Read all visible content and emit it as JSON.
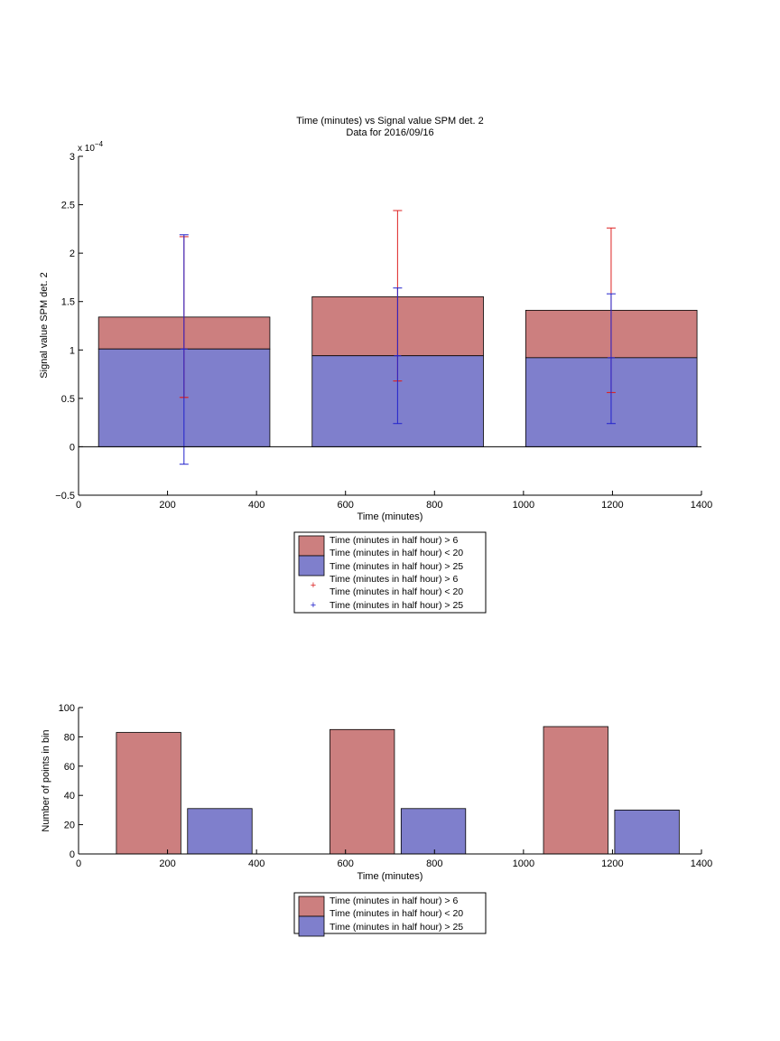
{
  "colors": {
    "red_fill": "#cc7f7f",
    "blue_fill": "#7f7fcc",
    "red_err": "#dd2222",
    "blue_err": "#2222cc",
    "axis": "#000000"
  },
  "chart_data": [
    {
      "type": "bar",
      "stacked": true,
      "title": "Time (minutes) vs Signal value SPM det. 2",
      "subtitle": "Data for 2016/09/16",
      "xlabel": "Time (minutes)",
      "ylabel": "Signal value SPM det. 2",
      "y_multiplier_label": "x 10",
      "y_multiplier_exp": "−4",
      "xlim": [
        0,
        1400
      ],
      "ylim": [
        -0.5,
        3
      ],
      "x_ticks": [
        0,
        200,
        400,
        600,
        800,
        1000,
        1200,
        1400
      ],
      "y_ticks": [
        -0.5,
        0,
        0.5,
        1,
        1.5,
        2,
        2.5,
        3
      ],
      "y_tick_labels": [
        "−0.5",
        "0",
        "0.5",
        "1",
        "1.5",
        "2",
        "2.5",
        "3"
      ],
      "bars": [
        {
          "x_start": 45,
          "x_end": 430,
          "total": 1.34,
          "lower": 1.01
        },
        {
          "x_start": 525,
          "x_end": 910,
          "total": 1.55,
          "lower": 0.94
        },
        {
          "x_start": 1005,
          "x_end": 1390,
          "total": 1.41,
          "lower": 0.92
        }
      ],
      "error_bars": [
        {
          "series": "red",
          "x": 237,
          "center": 0.51,
          "low": 0.51,
          "high": 2.17
        },
        {
          "series": "blue",
          "x": 237,
          "center": 1.01,
          "low": -0.18,
          "high": 2.19
        },
        {
          "series": "red",
          "x": 717,
          "center": 0.68,
          "low": 0.68,
          "high": 2.44
        },
        {
          "series": "blue",
          "x": 717,
          "center": 0.94,
          "low": 0.24,
          "high": 1.64
        },
        {
          "series": "red",
          "x": 1197,
          "center": 0.56,
          "low": 0.56,
          "high": 2.26
        },
        {
          "series": "blue",
          "x": 1197,
          "center": 0.92,
          "low": 0.24,
          "high": 1.58
        }
      ],
      "legend": {
        "placement": "below",
        "entries": [
          "Time (minutes in half hour) > 6",
          "Time (minutes in half hour) < 20",
          "Time (minutes in half hour) > 25",
          "Time (minutes in half hour) > 6",
          "Time (minutes in half hour) < 20",
          "Time (minutes in half hour) > 25"
        ]
      }
    },
    {
      "type": "bar",
      "stacked": false,
      "xlabel": "Time (minutes)",
      "ylabel": "Number of points in bin",
      "xlim": [
        0,
        1400
      ],
      "ylim": [
        0,
        100
      ],
      "x_ticks": [
        0,
        200,
        400,
        600,
        800,
        1000,
        1200,
        1400
      ],
      "y_ticks": [
        0,
        20,
        40,
        60,
        80,
        100
      ],
      "bars": [
        {
          "series": "red",
          "x_start": 85,
          "x_end": 230,
          "value": 83
        },
        {
          "series": "blue",
          "x_start": 245,
          "x_end": 390,
          "value": 31
        },
        {
          "series": "red",
          "x_start": 565,
          "x_end": 710,
          "value": 85
        },
        {
          "series": "blue",
          "x_start": 725,
          "x_end": 870,
          "value": 31
        },
        {
          "series": "red",
          "x_start": 1045,
          "x_end": 1190,
          "value": 87
        },
        {
          "series": "blue",
          "x_start": 1205,
          "x_end": 1350,
          "value": 30
        }
      ],
      "legend": {
        "placement": "below",
        "entries": [
          "Time (minutes in half hour) > 6",
          "Time (minutes in half hour) < 20",
          "Time (minutes in half hour) > 25"
        ]
      }
    }
  ]
}
